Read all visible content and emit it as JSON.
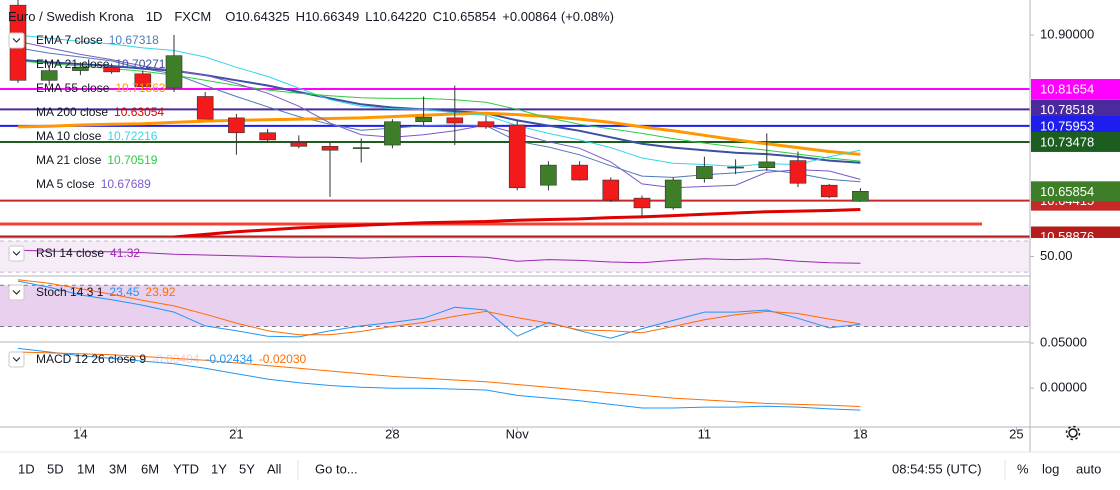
{
  "chart_data": {
    "type": "candlestick",
    "title": "Euro / Swedish Krona",
    "interval": "1D",
    "source": "FXCM",
    "header": {
      "prefixes": [
        "O",
        "H",
        "L",
        "C"
      ],
      "values": [
        10.64325,
        10.66349,
        10.6422,
        10.65854
      ],
      "value_labels": [
        "10.64325",
        "10.66349",
        "10.64220",
        "10.65854"
      ]
    },
    "change": {
      "value": 0.00864,
      "label": "+0.00864"
    },
    "change_pct": {
      "value": 0.08,
      "label": "(+0.08%)"
    },
    "categories": [
      null,
      null,
      "14",
      null,
      null,
      null,
      null,
      "21",
      null,
      null,
      null,
      null,
      "28",
      null,
      null,
      null,
      "Nov",
      null,
      null,
      null,
      null,
      null,
      "11",
      null,
      null,
      null,
      null,
      "18",
      null,
      null,
      null,
      null,
      "25"
    ],
    "open": [
      10.946,
      10.83,
      10.845,
      10.85,
      10.84,
      10.818,
      10.805,
      10.772,
      10.749,
      10.734,
      10.728,
      10.725,
      10.73,
      10.766,
      10.772,
      10.766,
      10.761,
      10.668,
      10.699,
      10.676,
      10.648,
      10.633,
      10.678,
      10.696,
      10.695,
      10.706,
      10.668,
      10.64325,
      null,
      null,
      null,
      null,
      null
    ],
    "high": [
      10.954,
      10.852,
      10.858,
      10.856,
      10.845,
      10.9,
      10.812,
      10.778,
      10.755,
      10.745,
      10.735,
      10.74,
      10.77,
      10.805,
      10.822,
      10.775,
      10.768,
      10.705,
      10.705,
      10.68,
      10.652,
      10.68,
      10.712,
      10.708,
      10.748,
      10.72,
      10.67,
      10.66349,
      null,
      null,
      null,
      null,
      null
    ],
    "low": [
      10.826,
      10.822,
      10.838,
      10.84,
      10.815,
      10.812,
      10.77,
      10.715,
      10.735,
      10.725,
      10.65,
      10.703,
      10.725,
      10.76,
      10.73,
      10.755,
      10.66,
      10.66,
      10.675,
      10.642,
      10.62,
      10.63,
      10.672,
      10.685,
      10.69,
      10.665,
      10.648,
      10.6422,
      null,
      null,
      null,
      null,
      null
    ],
    "close": [
      10.83,
      10.845,
      10.85,
      10.843,
      10.82,
      10.868,
      10.77,
      10.749,
      10.738,
      10.728,
      10.722,
      10.726,
      10.766,
      10.773,
      10.764,
      10.758,
      10.664,
      10.699,
      10.676,
      10.645,
      10.633,
      10.676,
      10.697,
      10.695,
      10.704,
      10.671,
      10.65,
      10.65854,
      null,
      null,
      null,
      null,
      null
    ],
    "up_color": "#3e7e28",
    "down_color": "#f21a1a",
    "ylim": [
      10.588,
      10.954
    ],
    "yticks": [
      {
        "value": 10.9,
        "label": "10.90000"
      }
    ],
    "levels": [
      {
        "value": 10.81654,
        "color": "#ff00ff"
      },
      {
        "value": 10.78518,
        "color": "#4a2a9c"
      },
      {
        "value": 10.75953,
        "color": "#1d1df0"
      },
      {
        "value": 10.73478,
        "color": "#1b5e20"
      },
      {
        "value": 10.64415,
        "color": "#c62828"
      },
      {
        "value": 10.58876,
        "color": "#b71c1c"
      }
    ],
    "extra_lines": [
      {
        "value": 10.608,
        "color": "#f44336"
      }
    ],
    "series": [
      {
        "name": "EMA 7 close",
        "color": "#4e7ab8",
        "width": 1,
        "values": [
          10.88,
          10.872,
          10.866,
          10.86,
          10.848,
          10.84,
          10.822,
          10.805,
          10.789,
          10.774,
          10.762,
          10.753,
          10.756,
          10.76,
          10.761,
          10.76,
          10.736,
          10.727,
          10.715,
          10.698,
          10.682,
          10.68,
          10.684,
          10.687,
          10.692,
          10.686,
          10.677,
          10.67318,
          null,
          null,
          null,
          null,
          null
        ]
      },
      {
        "name": "EMA 21 close",
        "color": "#3c4fa0",
        "width": 2,
        "values": [
          10.862,
          10.858,
          10.855,
          10.852,
          10.848,
          10.845,
          10.838,
          10.83,
          10.822,
          10.812,
          10.802,
          10.793,
          10.788,
          10.785,
          10.782,
          10.779,
          10.768,
          10.76,
          10.752,
          10.742,
          10.732,
          10.726,
          10.722,
          10.718,
          10.716,
          10.712,
          10.706,
          10.70271,
          null,
          null,
          null,
          null,
          null
        ]
      },
      {
        "name": "EMA 55 close",
        "color": "#ff9800",
        "width": 3,
        "values": [
          10.758,
          10.759,
          10.761,
          10.762,
          10.763,
          10.765,
          10.767,
          10.768,
          10.769,
          10.77,
          10.771,
          10.772,
          10.774,
          10.776,
          10.778,
          10.779,
          10.777,
          10.774,
          10.77,
          10.765,
          10.758,
          10.752,
          10.745,
          10.738,
          10.732,
          10.726,
          10.72,
          10.71563,
          null,
          null,
          null,
          null,
          null
        ]
      },
      {
        "name": "MA 200 close",
        "color": "#e00000",
        "width": 3,
        "values": [
          null,
          null,
          null,
          null,
          null,
          10.588,
          10.592,
          10.596,
          10.599,
          10.602,
          10.604,
          10.606,
          10.608,
          10.61,
          10.611,
          10.612,
          10.614,
          10.615,
          10.616,
          10.618,
          10.619,
          10.621,
          10.623,
          10.625,
          10.627,
          10.628,
          10.629,
          10.63054,
          null,
          null,
          null,
          null,
          null
        ]
      },
      {
        "name": "MA 10 close",
        "color": "#33d6e8",
        "width": 1,
        "values": [
          10.9,
          10.895,
          10.89,
          10.886,
          10.88,
          10.876,
          10.866,
          10.85,
          10.836,
          10.818,
          10.8,
          10.79,
          10.786,
          10.785,
          10.78,
          10.776,
          10.76,
          10.748,
          10.738,
          10.726,
          10.71,
          10.702,
          10.7,
          10.697,
          10.701,
          10.7,
          10.712,
          10.72216,
          null,
          null,
          null,
          null,
          null
        ]
      },
      {
        "name": "MA 21 close",
        "color": "#2ecc40",
        "width": 1,
        "values": [
          10.86,
          10.856,
          10.852,
          10.848,
          10.844,
          10.838,
          10.83,
          10.822,
          10.815,
          10.81,
          10.806,
          10.803,
          10.802,
          10.802,
          10.8,
          10.796,
          10.785,
          10.772,
          10.762,
          10.755,
          10.748,
          10.74,
          10.733,
          10.727,
          10.722,
          10.716,
          10.71,
          10.70519,
          null,
          null,
          null,
          null,
          null
        ]
      },
      {
        "name": "MA 5 close",
        "color": "#7a5ac8",
        "width": 1,
        "values": [
          10.89,
          10.88,
          10.87,
          10.862,
          10.852,
          10.845,
          10.838,
          10.825,
          10.81,
          10.79,
          10.764,
          10.746,
          10.742,
          10.746,
          10.752,
          10.761,
          10.748,
          10.735,
          10.725,
          10.704,
          10.67,
          10.664,
          10.666,
          10.668,
          10.688,
          10.692,
          10.69,
          10.67689,
          null,
          null,
          null,
          null,
          null
        ]
      }
    ],
    "rsi": {
      "name": "RSI 14 close",
      "color": "#9c27b0",
      "ylim": [
        26.25,
        72.5
      ],
      "yticks": [
        {
          "value": 50,
          "label": "50.00"
        }
      ],
      "band": [
        30,
        70
      ],
      "values": [
        58,
        57,
        56,
        56,
        55,
        53,
        52,
        51,
        50,
        49,
        49,
        48,
        49,
        50,
        50,
        49,
        44,
        46,
        45,
        43,
        42,
        45,
        47,
        46,
        47,
        44,
        42,
        41.32,
        null,
        null,
        null,
        null,
        null
      ]
    },
    "stoch": {
      "name": "Stoch 14 3 1",
      "ylim": [
        -1,
        92
      ],
      "band": [
        20,
        80
      ],
      "series": [
        {
          "color": "#2196f3",
          "values": [
            86,
            77,
            66,
            59,
            51,
            41,
            21,
            14,
            6,
            5,
            14,
            21,
            26,
            32,
            48,
            44,
            6,
            26,
            14,
            3,
            17,
            29,
            41,
            41,
            44,
            32,
            18,
            23.45,
            null,
            null,
            null,
            null,
            null
          ]
        },
        {
          "color": "#ff6d00",
          "values": [
            88,
            83,
            75,
            67,
            58,
            50,
            38,
            25,
            14,
            8,
            8,
            13,
            20,
            26,
            35,
            42,
            33,
            25,
            15,
            14,
            11,
            20,
            30,
            37,
            42,
            39,
            31,
            23.92,
            null,
            null,
            null,
            null,
            null
          ]
        }
      ]
    },
    "macd": {
      "name": "MACD 12 26 close 9",
      "histogram_last": -0.00404,
      "ylim": [
        -0.043,
        0.05
      ],
      "yticks": [
        {
          "value": 0.05,
          "label": "0.05000"
        },
        {
          "value": 0,
          "label": "0.00000"
        }
      ],
      "series": [
        {
          "color": "#2196f3",
          "values": [
            0.044,
            0.04,
            0.036,
            0.033,
            0.03,
            0.027,
            0.022,
            0.016,
            0.01,
            0.006,
            0.003,
            0.001,
            0,
            0,
            -0.001,
            -0.002,
            -0.008,
            -0.011,
            -0.014,
            -0.018,
            -0.022,
            -0.022,
            -0.021,
            -0.021,
            -0.02,
            -0.021,
            -0.023,
            -0.02434,
            null,
            null,
            null,
            null,
            null
          ]
        },
        {
          "color": "#ff6d00",
          "values": [
            0.04,
            0.039,
            0.038,
            0.037,
            0.035,
            0.033,
            0.031,
            0.028,
            0.025,
            0.022,
            0.019,
            0.016,
            0.013,
            0.011,
            0.009,
            0.007,
            0.004,
            0.001,
            -0.002,
            -0.005,
            -0.008,
            -0.011,
            -0.013,
            -0.015,
            -0.017,
            -0.018,
            -0.019,
            -0.0203,
            null,
            null,
            null,
            null,
            null
          ],
          "value_labels": [
            null,
            null,
            null,
            null,
            null,
            null,
            null,
            null,
            null,
            null,
            null,
            null,
            null,
            null,
            null,
            null,
            null,
            null,
            null,
            null,
            null,
            null,
            null,
            null,
            null,
            null,
            null,
            "-0.02030",
            null,
            null,
            null,
            null,
            null
          ]
        }
      ]
    },
    "toolbar": {
      "ranges": [
        "1D",
        "5D",
        "1M",
        "3M",
        "6M",
        "YTD",
        "1Y",
        "5Y",
        "All"
      ],
      "goto": "Go to...",
      "time": "08:54:55 (UTC)",
      "percent": "%",
      "log": "log",
      "auto": "auto"
    }
  }
}
